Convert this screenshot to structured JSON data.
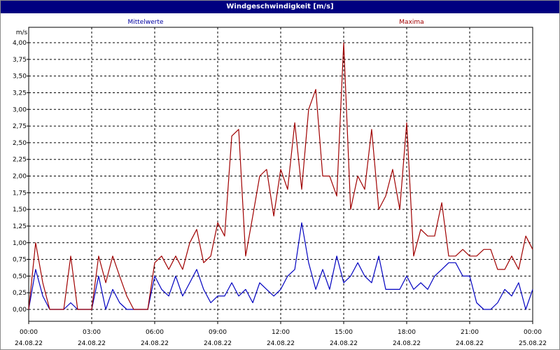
{
  "window": {
    "title": "Windgeschwindigkeit [m/s]"
  },
  "chart_data": {
    "type": "line",
    "title": "Windgeschwindigkeit [m/s]",
    "ylabel": "m/s",
    "ylim": [
      0,
      4
    ],
    "yticks": [
      "0,00",
      "0,25",
      "0,50",
      "0,75",
      "1,00",
      "1,25",
      "1,50",
      "1,75",
      "2,00",
      "2,25",
      "2,50",
      "2,75",
      "3,00",
      "3,25",
      "3,50",
      "3,75",
      "4,00"
    ],
    "xticks": [
      {
        "time": "00:00",
        "date": "24.08.22"
      },
      {
        "time": "03:00",
        "date": "24.08.22"
      },
      {
        "time": "06:00",
        "date": "24.08.22"
      },
      {
        "time": "09:00",
        "date": "24.08.22"
      },
      {
        "time": "12:00",
        "date": "24.08.22"
      },
      {
        "time": "15:00",
        "date": "24.08.22"
      },
      {
        "time": "18:00",
        "date": "24.08.22"
      },
      {
        "time": "21:00",
        "date": "24.08.22"
      },
      {
        "time": "00:00",
        "date": "25.08.22"
      }
    ],
    "xlim_hours": [
      0,
      24
    ],
    "grid": true,
    "series": [
      {
        "name": "Mittelwerte",
        "color": "#0000c0",
        "hours": [
          0,
          0.33,
          0.67,
          1,
          1.33,
          1.67,
          2,
          2.33,
          2.67,
          3,
          3.33,
          3.67,
          4,
          4.33,
          4.67,
          5,
          5.33,
          5.67,
          6,
          6.33,
          6.67,
          7,
          7.33,
          7.67,
          8,
          8.33,
          8.67,
          9,
          9.33,
          9.67,
          10,
          10.33,
          10.67,
          11,
          11.33,
          11.67,
          12,
          12.33,
          12.67,
          13,
          13.33,
          13.67,
          14,
          14.33,
          14.67,
          15,
          15.33,
          15.67,
          16,
          16.33,
          16.67,
          17,
          17.33,
          17.67,
          18,
          18.33,
          18.67,
          19,
          19.33,
          19.67,
          20,
          20.33,
          20.67,
          21,
          21.33,
          21.67,
          22,
          22.33,
          22.67,
          23,
          23.33,
          23.67,
          24
        ],
        "values": [
          0,
          0.6,
          0.2,
          0,
          0,
          0,
          0.1,
          0,
          0,
          0,
          0.5,
          0,
          0.3,
          0.1,
          0,
          0,
          0,
          0,
          0.5,
          0.3,
          0.2,
          0.5,
          0.2,
          0.4,
          0.6,
          0.3,
          0.1,
          0.2,
          0.2,
          0.4,
          0.2,
          0.3,
          0.1,
          0.4,
          0.3,
          0.2,
          0.3,
          0.5,
          0.6,
          1.3,
          0.7,
          0.3,
          0.6,
          0.3,
          0.8,
          0.4,
          0.5,
          0.7,
          0.5,
          0.4,
          0.8,
          0.3,
          0.3,
          0.3,
          0.5,
          0.3,
          0.4,
          0.3,
          0.5,
          0.6,
          0.7,
          0.7,
          0.5,
          0.5,
          0.1,
          0,
          0,
          0.1,
          0.3,
          0.2,
          0.4,
          0,
          0.3
        ]
      },
      {
        "name": "Maxima",
        "color": "#a00000",
        "hours": [
          0,
          0.33,
          0.67,
          1,
          1.33,
          1.67,
          2,
          2.33,
          2.67,
          3,
          3.33,
          3.67,
          4,
          4.33,
          4.67,
          5,
          5.33,
          5.67,
          6,
          6.33,
          6.67,
          7,
          7.33,
          7.67,
          8,
          8.33,
          8.67,
          9,
          9.33,
          9.67,
          10,
          10.33,
          10.67,
          11,
          11.33,
          11.67,
          12,
          12.33,
          12.67,
          13,
          13.33,
          13.67,
          14,
          14.33,
          14.67,
          15,
          15.33,
          15.67,
          16,
          16.33,
          16.67,
          17,
          17.33,
          17.67,
          18,
          18.33,
          18.67,
          19,
          19.33,
          19.67,
          20,
          20.33,
          20.67,
          21,
          21.33,
          21.67,
          22,
          22.33,
          22.67,
          23,
          23.33,
          23.67,
          24
        ],
        "values": [
          0,
          1,
          0.4,
          0,
          0,
          0,
          0.8,
          0,
          0,
          0,
          0.8,
          0.4,
          0.8,
          0.5,
          0.2,
          0,
          0,
          0,
          0.7,
          0.8,
          0.6,
          0.8,
          0.6,
          1.0,
          1.2,
          0.7,
          0.8,
          1.3,
          1.1,
          2.6,
          2.7,
          0.8,
          1.4,
          2.0,
          2.1,
          1.4,
          2.1,
          1.8,
          2.8,
          1.8,
          3.0,
          3.3,
          2.0,
          2.0,
          1.7,
          4.0,
          1.5,
          2.0,
          1.8,
          2.7,
          1.5,
          1.7,
          2.1,
          1.5,
          2.8,
          0.8,
          1.2,
          1.1,
          1.1,
          1.6,
          0.8,
          0.8,
          0.9,
          0.8,
          0.8,
          0.9,
          0.9,
          0.6,
          0.6,
          0.8,
          0.6,
          1.1,
          0.9
        ]
      }
    ]
  }
}
